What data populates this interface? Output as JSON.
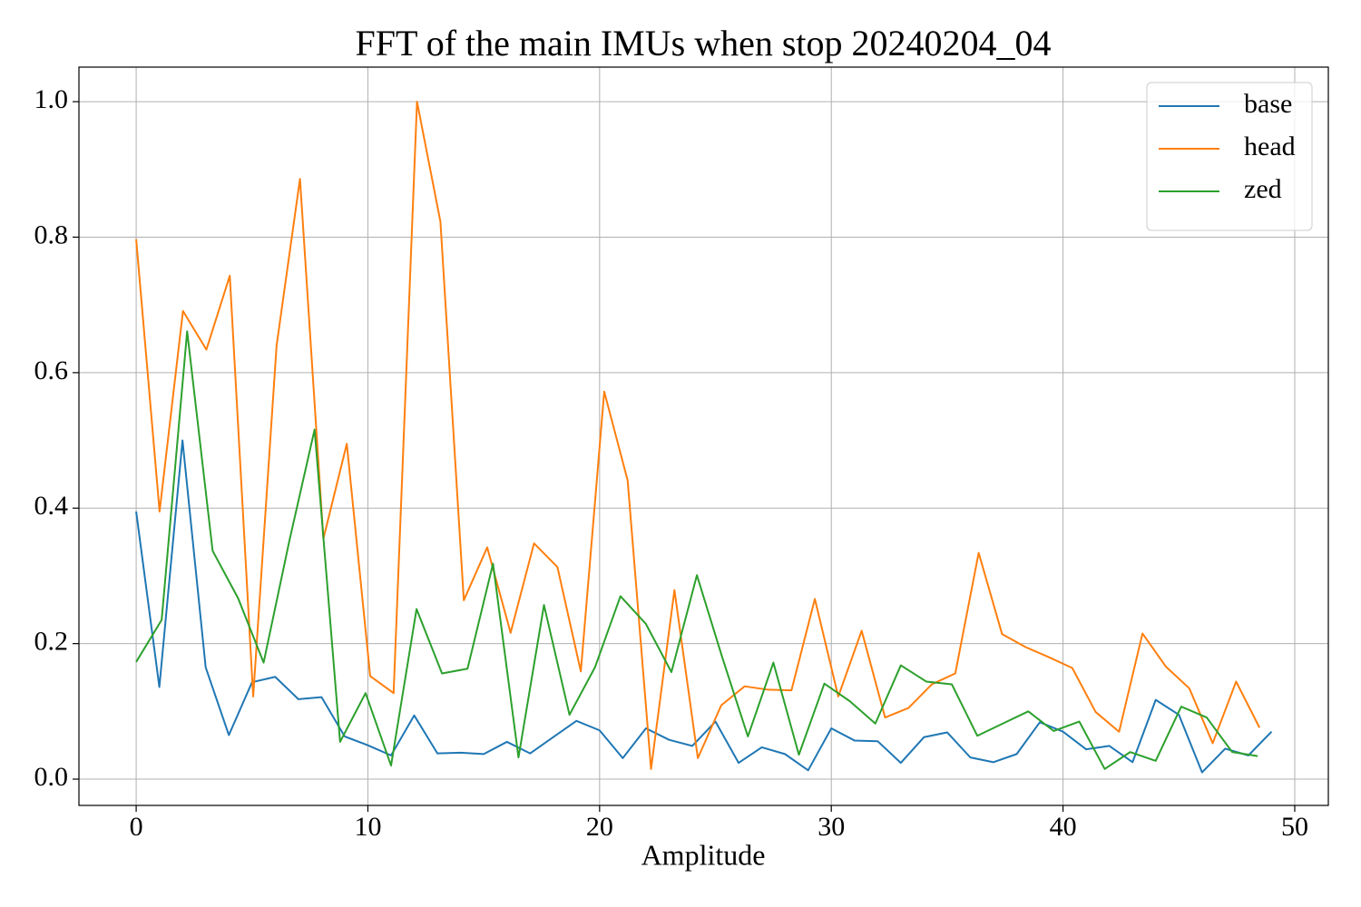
{
  "chart_data": {
    "type": "line",
    "title": "FFT of the main IMUs when stop 20240204_04",
    "x_label": "Amplitude",
    "xlim": [
      -2.47,
      51.45
    ],
    "ylim": [
      -0.0388,
      1.051
    ],
    "xticks": [
      0,
      10,
      20,
      30,
      40,
      50
    ],
    "yticks": [
      {
        "value": 0,
        "label": "0.0"
      },
      0.2,
      0.4,
      0.6,
      0.8,
      {
        "value": 1,
        "label": "1.0"
      }
    ],
    "grid": true,
    "legend": "upper right",
    "series": [
      {
        "name": "base",
        "color": "#1f77b4",
        "x": [
          0,
          1,
          2,
          3,
          4,
          5,
          6,
          7,
          8,
          9,
          10,
          11,
          12,
          13,
          14,
          15,
          16,
          17,
          18,
          19,
          20,
          21,
          22,
          23,
          24,
          25,
          26,
          27,
          28,
          29,
          30,
          31,
          32,
          33,
          34,
          35,
          36,
          37,
          38,
          39,
          40,
          41,
          42,
          43,
          44,
          45,
          46,
          47,
          48,
          49
        ],
        "values": [
          0.395,
          0.136,
          0.5,
          0.165,
          0.065,
          0.143,
          0.151,
          0.118,
          0.121,
          0.063,
          0.05,
          0.035,
          0.094,
          0.038,
          0.039,
          0.037,
          0.055,
          0.038,
          0.062,
          0.086,
          0.072,
          0.031,
          0.075,
          0.058,
          0.049,
          0.085,
          0.024,
          0.047,
          0.037,
          0.013,
          0.075,
          0.057,
          0.056,
          0.024,
          0.062,
          0.069,
          0.032,
          0.025,
          0.037,
          0.084,
          0.07,
          0.044,
          0.049,
          0.025,
          0.117,
          0.095,
          0.01,
          0.045,
          0.035,
          0.07
        ]
      },
      {
        "name": "head",
        "color": "#ff7f0e",
        "x": [
          0,
          1.01,
          2.02,
          3.03,
          4.04,
          5.05,
          6.06,
          7.07,
          8.08,
          9.09,
          10.1,
          11.11,
          12.12,
          13.13,
          14.14,
          15.15,
          16.16,
          17.17,
          18.18,
          19.19,
          20.2,
          21.21,
          22.22,
          23.23,
          24.24,
          25.25,
          26.26,
          27.27,
          28.28,
          29.29,
          30.3,
          31.31,
          32.32,
          33.33,
          34.34,
          35.35,
          36.36,
          37.37,
          38.38,
          39.39,
          40.4,
          41.41,
          42.42,
          43.43,
          44.44,
          45.45,
          46.46,
          47.47,
          48.48
        ],
        "values": [
          0.797,
          0.395,
          0.691,
          0.634,
          0.743,
          0.122,
          0.64,
          0.886,
          0.355,
          0.495,
          0.152,
          0.127,
          1.0,
          0.823,
          0.264,
          0.342,
          0.216,
          0.348,
          0.313,
          0.159,
          0.572,
          0.441,
          0.015,
          0.279,
          0.031,
          0.109,
          0.137,
          0.132,
          0.131,
          0.266,
          0.122,
          0.219,
          0.091,
          0.105,
          0.14,
          0.156,
          0.334,
          0.214,
          0.195,
          0.18,
          0.164,
          0.099,
          0.07,
          0.215,
          0.166,
          0.134,
          0.053,
          0.144,
          0.076
        ]
      },
      {
        "name": "zed",
        "color": "#2ca02c",
        "x": [
          0,
          1.1,
          2.2,
          3.3,
          4.4,
          5.5,
          6.6,
          7.7,
          8.8,
          9.9,
          11,
          12.1,
          13.2,
          14.3,
          15.4,
          16.5,
          17.6,
          18.7,
          19.8,
          20.9,
          22,
          23.1,
          24.2,
          25.3,
          26.4,
          27.5,
          28.6,
          29.7,
          30.8,
          31.9,
          33,
          34.1,
          35.2,
          36.3,
          37.4,
          38.5,
          39.6,
          40.7,
          41.8,
          42.9,
          44,
          45.1,
          46.2,
          47.3,
          48.4
        ],
        "values": [
          0.173,
          0.235,
          0.661,
          0.337,
          0.267,
          0.172,
          0.35,
          0.516,
          0.055,
          0.127,
          0.02,
          0.251,
          0.156,
          0.163,
          0.318,
          0.032,
          0.257,
          0.095,
          0.165,
          0.27,
          0.229,
          0.158,
          0.301,
          0.179,
          0.063,
          0.172,
          0.036,
          0.141,
          0.115,
          0.082,
          0.168,
          0.144,
          0.14,
          0.064,
          0.082,
          0.1,
          0.071,
          0.085,
          0.015,
          0.04,
          0.027,
          0.107,
          0.091,
          0.04,
          0.034
        ]
      }
    ]
  }
}
